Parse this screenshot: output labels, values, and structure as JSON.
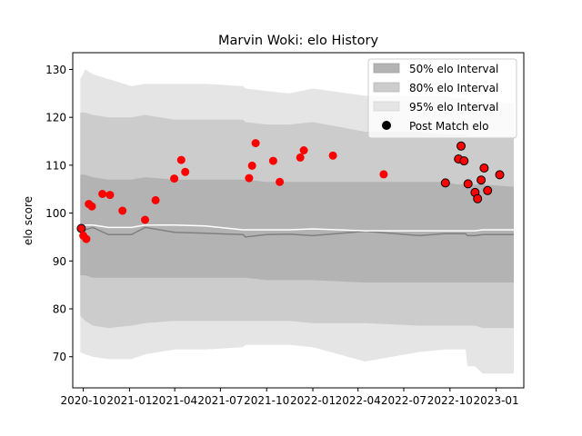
{
  "chart_data": {
    "type": "scatter",
    "title": "Marvin Woki: elo History",
    "xlabel": "",
    "ylabel": "elo score",
    "ylim": [
      63.5,
      133.5
    ],
    "xlim": [
      "2020-09-10",
      "2023-02-25"
    ],
    "yticks": [
      70,
      80,
      90,
      100,
      110,
      120,
      130
    ],
    "xticks": [
      {
        "date": "2020-10-01",
        "label": "2020-10"
      },
      {
        "date": "2021-01-01",
        "label": "2021-01"
      },
      {
        "date": "2021-04-01",
        "label": "2021-04"
      },
      {
        "date": "2021-07-01",
        "label": "2021-07"
      },
      {
        "date": "2021-10-01",
        "label": "2021-10"
      },
      {
        "date": "2022-01-01",
        "label": "2022-01"
      },
      {
        "date": "2022-04-01",
        "label": "2022-04"
      },
      {
        "date": "2022-07-01",
        "label": "2022-07"
      },
      {
        "date": "2022-10-01",
        "label": "2022-10"
      },
      {
        "date": "2023-01-01",
        "label": "2023-01"
      }
    ],
    "legend": {
      "position": "top-right",
      "entries": [
        "50% elo Interval",
        "80% elo Interval",
        "95% elo Interval",
        "Post Match elo"
      ]
    },
    "colors": {
      "band50": "#b3b3b3",
      "band80": "#cccccc",
      "band95": "#e5e5e5",
      "median": "#808080",
      "mean": "#ffffff",
      "points": "#ff0000",
      "points_edge": "#000000"
    },
    "bands": {
      "x": [
        "2020-09-25",
        "2020-10-05",
        "2020-10-20",
        "2020-11-20",
        "2021-01-05",
        "2021-02-01",
        "2021-04-01",
        "2021-06-01",
        "2021-08-15",
        "2021-08-20",
        "2021-10-01",
        "2021-11-15",
        "2022-01-01",
        "2022-04-15",
        "2022-08-01",
        "2022-09-20",
        "2022-10-15",
        "2022-11-01",
        "2022-11-05",
        "2022-11-20",
        "2022-12-05",
        "2023-02-05"
      ],
      "band95_high": [
        128,
        130,
        129,
        128,
        126.5,
        127,
        127,
        127,
        126.5,
        126,
        125.5,
        125,
        126,
        124.5,
        124.5,
        124.5,
        124,
        124,
        123,
        123,
        123,
        123
      ],
      "band95_low": [
        71,
        70.5,
        70,
        69.5,
        69.5,
        70.5,
        71.5,
        71.5,
        72,
        72.5,
        72.5,
        72.5,
        72,
        69,
        71,
        71.5,
        71.5,
        71.5,
        68,
        68,
        66.5,
        66.5
      ],
      "band80_high": [
        121,
        121,
        120.5,
        120,
        120,
        120.5,
        119.5,
        119.5,
        119.5,
        119,
        118.5,
        118.5,
        119,
        117,
        117,
        116.5,
        116.5,
        116.5,
        116,
        116,
        116,
        116
      ],
      "band80_low": [
        78.5,
        77.5,
        76.5,
        76,
        76.5,
        77,
        77.5,
        77.5,
        77.5,
        77.5,
        77.5,
        77.5,
        77,
        77,
        76.5,
        76.5,
        76.5,
        76.5,
        76.5,
        76.5,
        76,
        76
      ],
      "band50_high": [
        108,
        108,
        107.5,
        107,
        107,
        107.5,
        107,
        107,
        107,
        107,
        106.5,
        106.5,
        106.5,
        106.5,
        106.5,
        106.5,
        106,
        106,
        106,
        106,
        106,
        105.5
      ],
      "band50_low": [
        87,
        87,
        86.5,
        86.5,
        86.5,
        86.5,
        86.5,
        86.5,
        86.5,
        86.5,
        86,
        86,
        86,
        85.5,
        85.5,
        85.5,
        85.5,
        85.5,
        85.5,
        85.5,
        85.5,
        85.5
      ],
      "median": [
        96.5,
        96.5,
        97,
        95.5,
        95.5,
        97,
        96,
        95.8,
        95.5,
        95,
        95.5,
        95.6,
        95.3,
        96.2,
        95.3,
        95.7,
        95.7,
        95.7,
        95.3,
        95.3,
        95.5,
        95.5
      ],
      "mean": [
        97,
        97.5,
        97.5,
        97,
        97,
        97.5,
        97.5,
        97.3,
        96.5,
        96.5,
        96.5,
        96.5,
        96.7,
        96.3,
        96.3,
        96.3,
        96.3,
        96.3,
        96.3,
        96.3,
        96.5,
        96.5
      ]
    },
    "series": [
      {
        "name": "Post Match elo",
        "points": [
          {
            "x": "2020-09-27",
            "y": 96.8,
            "edge": true
          },
          {
            "x": "2020-10-01",
            "y": 95.3,
            "edge": false
          },
          {
            "x": "2020-10-07",
            "y": 94.6,
            "edge": false
          },
          {
            "x": "2020-10-12",
            "y": 101.9,
            "edge": false
          },
          {
            "x": "2020-10-18",
            "y": 101.4,
            "edge": false
          },
          {
            "x": "2020-11-08",
            "y": 104.0,
            "edge": false
          },
          {
            "x": "2020-11-23",
            "y": 103.8,
            "edge": false
          },
          {
            "x": "2020-12-18",
            "y": 100.5,
            "edge": false
          },
          {
            "x": "2021-02-01",
            "y": 98.6,
            "edge": false
          },
          {
            "x": "2021-02-22",
            "y": 102.7,
            "edge": false
          },
          {
            "x": "2021-03-31",
            "y": 107.2,
            "edge": false
          },
          {
            "x": "2021-04-14",
            "y": 111.1,
            "edge": false
          },
          {
            "x": "2021-04-22",
            "y": 108.6,
            "edge": false
          },
          {
            "x": "2021-08-27",
            "y": 107.3,
            "edge": false
          },
          {
            "x": "2021-09-02",
            "y": 109.9,
            "edge": false
          },
          {
            "x": "2021-09-09",
            "y": 114.6,
            "edge": false
          },
          {
            "x": "2021-10-14",
            "y": 110.9,
            "edge": false
          },
          {
            "x": "2021-10-27",
            "y": 106.5,
            "edge": false
          },
          {
            "x": "2021-12-07",
            "y": 111.6,
            "edge": false
          },
          {
            "x": "2021-12-14",
            "y": 113.1,
            "edge": false
          },
          {
            "x": "2022-02-10",
            "y": 112.0,
            "edge": false
          },
          {
            "x": "2022-05-22",
            "y": 108.1,
            "edge": false
          },
          {
            "x": "2022-09-22",
            "y": 106.3,
            "edge": true
          },
          {
            "x": "2022-10-18",
            "y": 111.3,
            "edge": true
          },
          {
            "x": "2022-10-23",
            "y": 114.0,
            "edge": true
          },
          {
            "x": "2022-10-29",
            "y": 110.9,
            "edge": true
          },
          {
            "x": "2022-11-06",
            "y": 106.1,
            "edge": true
          },
          {
            "x": "2022-11-20",
            "y": 104.3,
            "edge": true
          },
          {
            "x": "2022-11-25",
            "y": 103.0,
            "edge": true
          },
          {
            "x": "2022-12-02",
            "y": 106.9,
            "edge": true
          },
          {
            "x": "2022-12-08",
            "y": 109.4,
            "edge": true
          },
          {
            "x": "2022-12-15",
            "y": 104.7,
            "edge": true
          },
          {
            "x": "2023-01-08",
            "y": 108.0,
            "edge": true
          }
        ]
      }
    ]
  }
}
